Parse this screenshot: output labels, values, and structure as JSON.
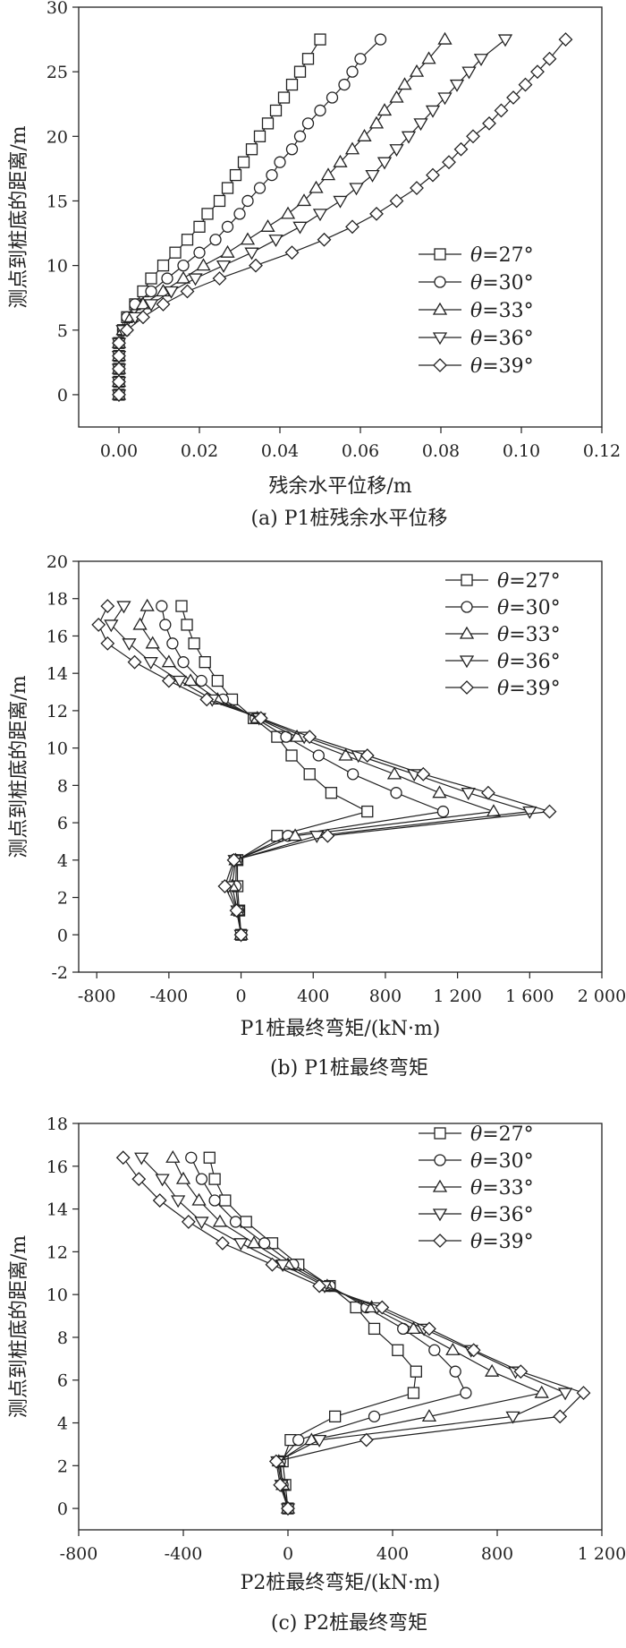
{
  "legend_prefix": "θ",
  "chart_data": [
    {
      "type": "line",
      "caption": "(a) P1桩残余水平位移",
      "xlabel": "残余水平位移/m",
      "ylabel": "测点到桩底的距离/m",
      "xlim": [
        -0.01,
        0.12
      ],
      "ylim": [
        -2.5,
        30
      ],
      "xticks": [
        0.0,
        0.02,
        0.04,
        0.06,
        0.08,
        0.1,
        0.12
      ],
      "xtick_labels": [
        "0.00",
        "0.02",
        "0.04",
        "0.06",
        "0.08",
        "0.10",
        "0.12"
      ],
      "yticks": [
        0,
        5,
        10,
        15,
        20,
        25,
        30
      ],
      "ytick_labels": [
        "0",
        "5",
        "10",
        "15",
        "20",
        "25",
        "30"
      ],
      "legend": {
        "position": "right-middle"
      },
      "series": [
        {
          "name": "θ=27°",
          "label": "=27°",
          "marker": "square",
          "y": [
            0,
            1,
            2,
            3,
            4,
            5,
            6,
            7,
            8,
            9,
            10,
            11,
            12,
            13,
            14,
            15,
            16,
            17,
            18,
            19,
            20,
            21,
            22,
            23,
            24,
            25,
            26,
            27.5
          ],
          "x": [
            0,
            0,
            0,
            0,
            0,
            0.001,
            0.002,
            0.004,
            0.006,
            0.008,
            0.011,
            0.014,
            0.017,
            0.02,
            0.022,
            0.025,
            0.027,
            0.029,
            0.031,
            0.033,
            0.035,
            0.037,
            0.039,
            0.041,
            0.043,
            0.045,
            0.047,
            0.05
          ]
        },
        {
          "name": "θ=30°",
          "label": "=30°",
          "marker": "circle",
          "y": [
            0,
            1,
            2,
            3,
            4,
            5,
            6,
            7,
            8,
            9,
            10,
            11,
            12,
            13,
            14,
            15,
            16,
            17,
            18,
            19,
            20,
            21,
            22,
            23,
            24,
            25,
            26,
            27.5
          ],
          "x": [
            0,
            0,
            0,
            0,
            0,
            0.001,
            0.002,
            0.004,
            0.008,
            0.012,
            0.016,
            0.02,
            0.024,
            0.027,
            0.03,
            0.032,
            0.035,
            0.038,
            0.04,
            0.043,
            0.045,
            0.047,
            0.05,
            0.053,
            0.056,
            0.058,
            0.06,
            0.065
          ]
        },
        {
          "name": "θ=33°",
          "label": "=33°",
          "marker": "triangle-up",
          "y": [
            0,
            1,
            2,
            3,
            4,
            5,
            6,
            7,
            8,
            9,
            10,
            11,
            12,
            13,
            14,
            15,
            16,
            17,
            18,
            19,
            20,
            21,
            22,
            23,
            24,
            25,
            26,
            27.5
          ],
          "x": [
            0,
            0,
            0,
            0,
            0,
            0.001,
            0.003,
            0.006,
            0.011,
            0.016,
            0.021,
            0.027,
            0.032,
            0.037,
            0.042,
            0.046,
            0.049,
            0.052,
            0.055,
            0.058,
            0.061,
            0.064,
            0.066,
            0.069,
            0.071,
            0.074,
            0.077,
            0.081
          ]
        },
        {
          "name": "θ=36°",
          "label": "=36°",
          "marker": "triangle-down",
          "y": [
            0,
            1,
            2,
            3,
            4,
            5,
            6,
            7,
            8,
            9,
            10,
            11,
            12,
            13,
            14,
            15,
            16,
            17,
            18,
            19,
            20,
            21,
            22,
            23,
            24,
            25,
            26,
            27.5
          ],
          "x": [
            0,
            0,
            0,
            0,
            0,
            0.001,
            0.004,
            0.008,
            0.013,
            0.019,
            0.026,
            0.033,
            0.039,
            0.045,
            0.05,
            0.055,
            0.059,
            0.063,
            0.066,
            0.069,
            0.072,
            0.075,
            0.078,
            0.081,
            0.084,
            0.087,
            0.09,
            0.096
          ]
        },
        {
          "name": "θ=39°",
          "label": "=39°",
          "marker": "diamond",
          "y": [
            0,
            1,
            2,
            3,
            4,
            5,
            6,
            7,
            8,
            9,
            10,
            11,
            12,
            13,
            14,
            15,
            16,
            17,
            18,
            19,
            20,
            21,
            22,
            23,
            24,
            25,
            26,
            27.5
          ],
          "x": [
            0,
            0,
            0,
            0,
            0,
            0.002,
            0.006,
            0.011,
            0.017,
            0.025,
            0.034,
            0.043,
            0.051,
            0.058,
            0.064,
            0.069,
            0.074,
            0.078,
            0.082,
            0.085,
            0.088,
            0.092,
            0.095,
            0.098,
            0.101,
            0.104,
            0.107,
            0.111
          ]
        }
      ]
    },
    {
      "type": "line",
      "caption": "(b) P1桩最终弯矩",
      "xlabel": "P1桩最终弯矩/(kN·m)",
      "ylabel": "测点到桩底的距离/m",
      "xlim": [
        -900,
        2000
      ],
      "ylim": [
        -2,
        20
      ],
      "xticks": [
        -800,
        -400,
        0,
        400,
        800,
        1200,
        1600,
        2000
      ],
      "xtick_labels": [
        "-800",
        "-400",
        "0",
        "400",
        "800",
        "1 200",
        "1 600",
        "2 000"
      ],
      "yticks": [
        -2,
        0,
        2,
        4,
        6,
        8,
        10,
        12,
        14,
        16,
        18,
        20
      ],
      "ytick_labels": [
        "-2",
        "0",
        "2",
        "4",
        "6",
        "8",
        "10",
        "12",
        "14",
        "16",
        "18",
        "20"
      ],
      "legend": {
        "position": "top-right"
      },
      "series": [
        {
          "name": "θ=27°",
          "label": "=27°",
          "marker": "square",
          "y": [
            0,
            1.3,
            2.6,
            4,
            5.3,
            6.6,
            7.6,
            8.6,
            9.6,
            10.6,
            11.6,
            12.6,
            13.6,
            14.6,
            15.6,
            16.6,
            17.6
          ],
          "x": [
            0,
            -10,
            -20,
            -20,
            200,
            700,
            500,
            380,
            280,
            200,
            70,
            -50,
            -130,
            -200,
            -260,
            -300,
            -330
          ]
        },
        {
          "name": "θ=30°",
          "label": "=30°",
          "marker": "circle",
          "y": [
            0,
            1.3,
            2.6,
            4,
            5.3,
            6.6,
            7.6,
            8.6,
            9.6,
            10.6,
            11.6,
            12.6,
            13.6,
            14.6,
            15.6,
            16.6,
            17.6
          ],
          "x": [
            0,
            -15,
            -30,
            -25,
            260,
            1120,
            860,
            620,
            430,
            250,
            80,
            -100,
            -220,
            -320,
            -380,
            -420,
            -440
          ]
        },
        {
          "name": "θ=33°",
          "label": "=33°",
          "marker": "triangle-up",
          "y": [
            0,
            1.3,
            2.6,
            4,
            5.3,
            6.6,
            7.6,
            8.6,
            9.6,
            10.6,
            11.6,
            12.6,
            13.6,
            14.6,
            15.6,
            16.6,
            17.6
          ],
          "x": [
            0,
            -20,
            -50,
            -30,
            300,
            1400,
            1100,
            850,
            580,
            310,
            90,
            -130,
            -280,
            -400,
            -490,
            -560,
            -520
          ]
        },
        {
          "name": "θ=36°",
          "label": "=36°",
          "marker": "triangle-down",
          "y": [
            0,
            1.3,
            2.6,
            4,
            5.3,
            6.6,
            7.6,
            8.6,
            9.6,
            10.6,
            11.6,
            12.6,
            13.6,
            14.6,
            15.6,
            16.6,
            17.6
          ],
          "x": [
            0,
            -20,
            -70,
            -35,
            420,
            1600,
            1260,
            960,
            650,
            350,
            100,
            -160,
            -340,
            -500,
            -620,
            -720,
            -650
          ]
        },
        {
          "name": "θ=39°",
          "label": "=39°",
          "marker": "diamond",
          "y": [
            0,
            1.3,
            2.6,
            4,
            5.3,
            6.6,
            7.6,
            8.6,
            9.6,
            10.6,
            11.6,
            12.6,
            13.6,
            14.6,
            15.6,
            16.6,
            17.6
          ],
          "x": [
            0,
            -25,
            -90,
            -40,
            480,
            1710,
            1370,
            1010,
            700,
            380,
            110,
            -190,
            -400,
            -590,
            -740,
            -790,
            -740
          ]
        }
      ]
    },
    {
      "type": "line",
      "caption": "(c) P2桩最终弯矩",
      "xlabel": "P2桩最终弯矩/(kN·m)",
      "ylabel": "测点到桩底的距离/m",
      "xlim": [
        -800,
        1200
      ],
      "ylim": [
        -1,
        18
      ],
      "xticks": [
        -800,
        -400,
        0,
        400,
        800,
        1200
      ],
      "xtick_labels": [
        "-800",
        "-400",
        "0",
        "400",
        "800",
        "1 200"
      ],
      "yticks": [
        0,
        2,
        4,
        6,
        8,
        10,
        12,
        14,
        16,
        18
      ],
      "ytick_labels": [
        "0",
        "2",
        "4",
        "6",
        "8",
        "10",
        "12",
        "14",
        "16",
        "18"
      ],
      "legend": {
        "position": "top-right"
      },
      "series": [
        {
          "name": "θ=27°",
          "label": "=27°",
          "marker": "square",
          "y": [
            0,
            1.1,
            2.2,
            3.2,
            4.3,
            5.4,
            6.4,
            7.4,
            8.4,
            9.4,
            10.4,
            11.4,
            12.4,
            13.4,
            14.4,
            15.4,
            16.4
          ],
          "x": [
            0,
            -10,
            -20,
            10,
            180,
            480,
            490,
            420,
            330,
            260,
            160,
            40,
            -60,
            -160,
            -240,
            -280,
            -300
          ]
        },
        {
          "name": "θ=30°",
          "label": "=30°",
          "marker": "circle",
          "y": [
            0,
            1.1,
            2.2,
            3.2,
            4.3,
            5.4,
            6.4,
            7.4,
            8.4,
            9.4,
            10.4,
            11.4,
            12.4,
            13.4,
            14.4,
            15.4,
            16.4
          ],
          "x": [
            0,
            -20,
            -30,
            40,
            330,
            680,
            640,
            560,
            440,
            300,
            160,
            20,
            -90,
            -200,
            -280,
            -330,
            -370
          ]
        },
        {
          "name": "θ=33°",
          "label": "=33°",
          "marker": "triangle-up",
          "y": [
            0,
            1.1,
            2.2,
            3.2,
            4.3,
            5.4,
            6.4,
            7.4,
            8.4,
            9.4,
            10.4,
            11.4,
            12.4,
            13.4,
            14.4,
            15.4,
            16.4
          ],
          "x": [
            0,
            -20,
            -35,
            90,
            540,
            970,
            780,
            630,
            480,
            320,
            150,
            0,
            -130,
            -260,
            -340,
            -400,
            -440
          ]
        },
        {
          "name": "θ=36°",
          "label": "=36°",
          "marker": "triangle-down",
          "y": [
            0,
            1.1,
            2.2,
            3.2,
            4.3,
            5.4,
            6.4,
            7.4,
            8.4,
            9.4,
            10.4,
            11.4,
            12.4,
            13.4,
            14.4,
            15.4,
            16.4
          ],
          "x": [
            0,
            -25,
            -40,
            120,
            860,
            1060,
            870,
            700,
            520,
            340,
            140,
            -20,
            -180,
            -330,
            -420,
            -480,
            -560
          ]
        },
        {
          "name": "θ=39°",
          "label": "=39°",
          "marker": "diamond",
          "y": [
            0,
            1.1,
            2.2,
            3.2,
            4.3,
            5.4,
            6.4,
            7.4,
            8.4,
            9.4,
            10.4,
            11.4,
            12.4,
            13.4,
            14.4,
            15.4,
            16.4
          ],
          "x": [
            0,
            -30,
            -45,
            300,
            1040,
            1130,
            890,
            710,
            540,
            360,
            120,
            -60,
            -250,
            -380,
            -490,
            -570,
            -630
          ]
        }
      ]
    }
  ]
}
